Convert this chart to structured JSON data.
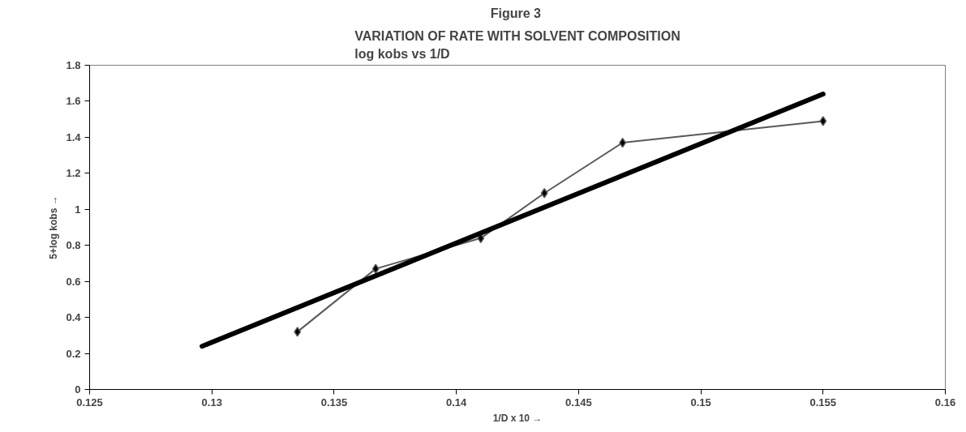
{
  "chart_data": {
    "type": "line",
    "title": "Figure  3",
    "subtitle": "VARIATION OF RATE WITH SOLVENT COMPOSITION\nlog kobs vs 1/D",
    "xlabel": "1/D x 10 →",
    "ylabel": "5+log kobs →",
    "x": [
      0.1335,
      0.1367,
      0.141,
      0.1436,
      0.1468,
      0.155
    ],
    "series": [
      {
        "color": "#595959",
        "marker": "diamond",
        "values": [
          0.32,
          0.67,
          0.84,
          1.09,
          1.37,
          1.49
        ]
      },
      {
        "type": "line",
        "color": "#000000",
        "marker": "none",
        "x": [
          0.1296,
          0.155
        ],
        "values": [
          0.24,
          1.64
        ]
      }
    ],
    "xlim": [
      0.125,
      0.16
    ],
    "xticks": [
      0.125,
      0.13,
      0.135,
      0.14,
      0.145,
      0.15,
      0.155,
      0.16
    ],
    "ylim": [
      0,
      1.8
    ],
    "yticks": [
      0,
      0.2,
      0.4,
      0.6,
      0.8,
      1,
      1.2,
      1.4,
      1.6,
      1.8
    ],
    "grid": false
  }
}
